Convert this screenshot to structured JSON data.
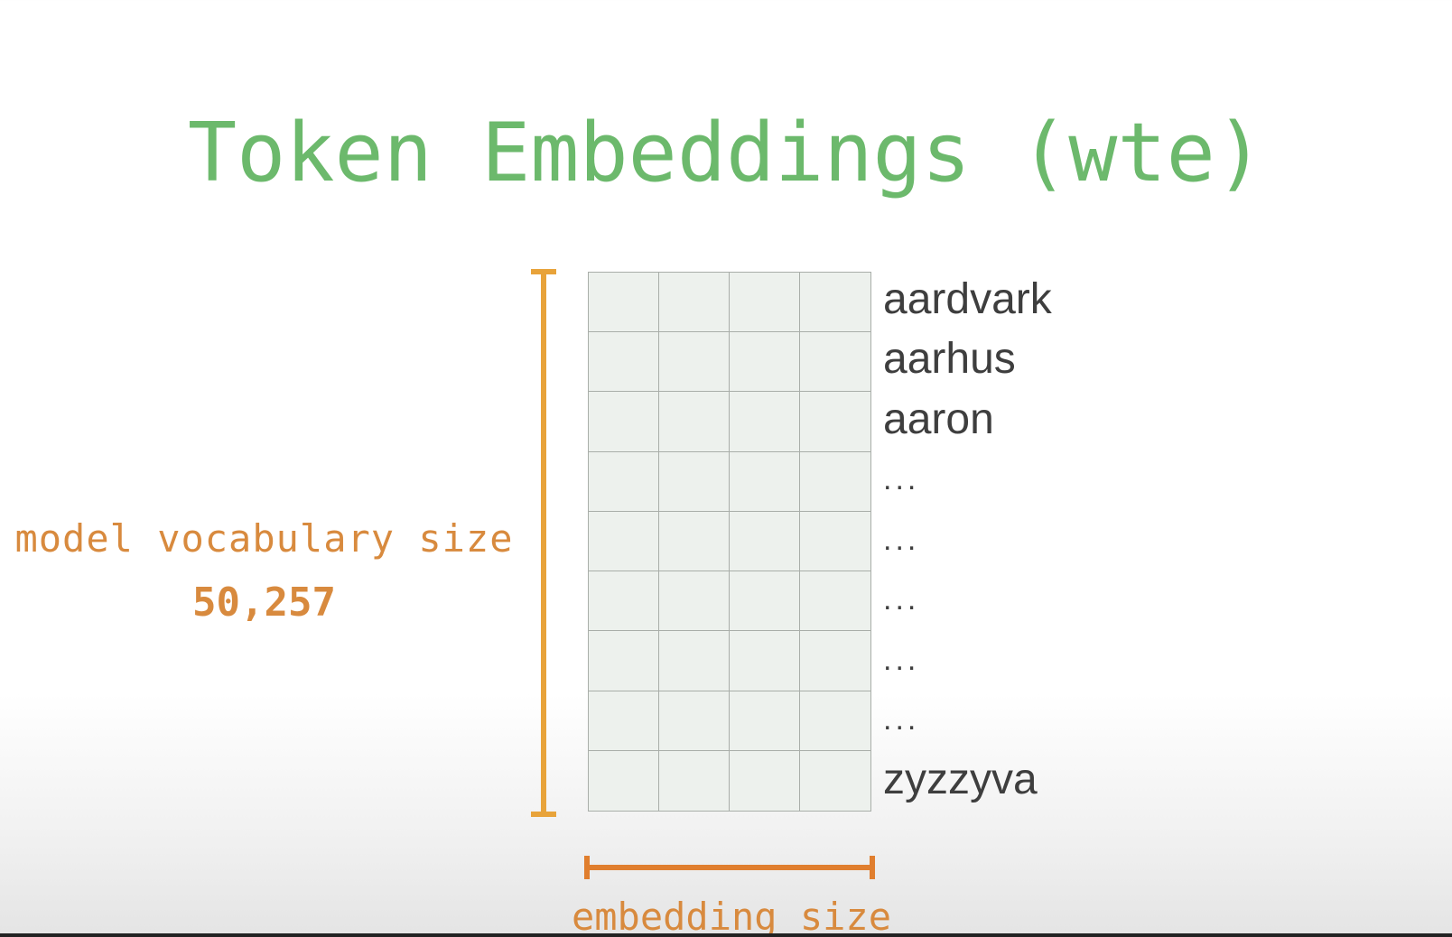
{
  "title": "Token Embeddings (wte)",
  "vocab": {
    "label": "model vocabulary size",
    "value": "50,257"
  },
  "embedding": {
    "label": "embedding size"
  },
  "matrix": {
    "columns": 4,
    "rows": 9
  },
  "tokens": [
    "aardvark",
    "aarhus",
    "aaron",
    "...",
    "...",
    "...",
    "...",
    "...",
    "zyzzyva"
  ],
  "colors": {
    "title": "#6cb96c",
    "annotation": "#d88a3e",
    "bracket_vertical": "#e8a33a",
    "bracket_horizontal": "#e07e2e",
    "cell_fill": "#edf1ed",
    "cell_border": "#a9aea9"
  }
}
